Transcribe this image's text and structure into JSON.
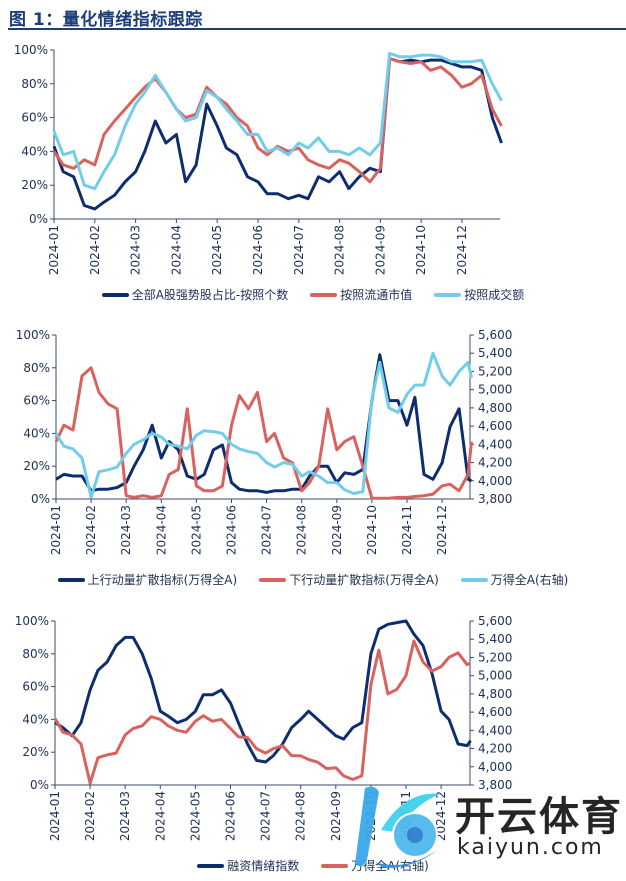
{
  "figure_title": "图 1：量化情绪指标跟踪",
  "colors": {
    "navy": "#0e2d6f",
    "red": "#d9625e",
    "cyan": "#72cdea",
    "title": "#1c3f7a"
  },
  "watermark": {
    "cn": "开云体育",
    "en": "kaiyun.com"
  },
  "chart_data": [
    {
      "type": "line",
      "title": "",
      "y_ticks": [
        "0%",
        "20%",
        "40%",
        "60%",
        "80%",
        "100%"
      ],
      "ylim": [
        0,
        100
      ],
      "x_ticks": [
        "2024-01",
        "2024-02",
        "2024-03",
        "2024-04",
        "2024-05",
        "2024-06",
        "2024-07",
        "2024-08",
        "2024-09",
        "2024-10",
        "2024-12"
      ],
      "grid": false,
      "legend": "bottom",
      "x": [
        "2024-01-01",
        "2024-01-08",
        "2024-01-16",
        "2024-01-24",
        "2024-02-01",
        "2024-02-08",
        "2024-02-16",
        "2024-02-24",
        "2024-03-01",
        "2024-03-08",
        "2024-03-16",
        "2024-03-24",
        "2024-04-01",
        "2024-04-08",
        "2024-04-16",
        "2024-04-24",
        "2024-05-01",
        "2024-05-08",
        "2024-05-16",
        "2024-05-24",
        "2024-06-01",
        "2024-06-08",
        "2024-06-16",
        "2024-06-24",
        "2024-07-01",
        "2024-07-08",
        "2024-07-16",
        "2024-07-24",
        "2024-08-01",
        "2024-08-08",
        "2024-08-16",
        "2024-08-24",
        "2024-09-01",
        "2024-09-08",
        "2024-09-16",
        "2024-09-24",
        "2024-10-01",
        "2024-10-08",
        "2024-10-16",
        "2024-10-24",
        "2024-12-01",
        "2024-12-08",
        "2024-12-16",
        "2024-12-24",
        "2024-12-31"
      ],
      "series": [
        {
          "name": "全部A股强势股占比-按照个数",
          "color": "#0e2d6f",
          "axis": "left",
          "values": [
            43,
            28,
            25,
            8,
            6,
            10,
            14,
            22,
            28,
            40,
            58,
            45,
            50,
            22,
            32,
            68,
            55,
            42,
            38,
            25,
            22,
            15,
            15,
            12,
            14,
            12,
            25,
            22,
            28,
            18,
            25,
            30,
            28,
            95,
            93,
            94,
            93,
            94,
            94,
            92,
            90,
            90,
            88,
            60,
            45
          ]
        },
        {
          "name": "按照流通市值",
          "color": "#d9625e",
          "axis": "left",
          "values": [
            40,
            32,
            30,
            35,
            32,
            50,
            58,
            65,
            72,
            78,
            83,
            75,
            65,
            60,
            62,
            78,
            72,
            68,
            60,
            55,
            42,
            38,
            43,
            40,
            42,
            35,
            32,
            30,
            35,
            33,
            28,
            22,
            30,
            95,
            93,
            92,
            93,
            88,
            90,
            85,
            78,
            80,
            85,
            65,
            55
          ]
        },
        {
          "name": "按照成交额",
          "color": "#72cdea",
          "axis": "left",
          "values": [
            52,
            38,
            40,
            20,
            18,
            28,
            38,
            55,
            68,
            75,
            85,
            75,
            65,
            58,
            60,
            76,
            72,
            65,
            58,
            50,
            50,
            40,
            42,
            38,
            45,
            42,
            48,
            40,
            40,
            38,
            42,
            38,
            45,
            98,
            96,
            96,
            97,
            97,
            96,
            93,
            93,
            93,
            94,
            80,
            70
          ]
        }
      ]
    },
    {
      "type": "line",
      "title": "",
      "y_ticks": [
        "0%",
        "20%",
        "40%",
        "60%",
        "80%",
        "100%"
      ],
      "ylim": [
        0,
        100
      ],
      "y2_ticks": [
        "3,800",
        "4,000",
        "4,200",
        "4,400",
        "4,600",
        "4,800",
        "5,000",
        "5,200",
        "5,400",
        "5,600"
      ],
      "y2lim": [
        3800,
        5600
      ],
      "x_ticks": [
        "2024-01",
        "2024-02",
        "2024-03",
        "2024-04",
        "2024-05",
        "2024-06",
        "2024-07",
        "2024-08",
        "2024-09",
        "2024-10",
        "2024-11",
        "2024-12"
      ],
      "grid": false,
      "legend": "bottom",
      "x": [
        "2024-01-01",
        "2024-01-08",
        "2024-01-16",
        "2024-01-24",
        "2024-02-01",
        "2024-02-08",
        "2024-02-16",
        "2024-02-24",
        "2024-03-01",
        "2024-03-08",
        "2024-03-16",
        "2024-03-24",
        "2024-04-01",
        "2024-04-08",
        "2024-04-16",
        "2024-04-24",
        "2024-05-01",
        "2024-05-08",
        "2024-05-16",
        "2024-05-24",
        "2024-06-01",
        "2024-06-08",
        "2024-06-16",
        "2024-06-24",
        "2024-07-01",
        "2024-07-08",
        "2024-07-16",
        "2024-07-24",
        "2024-08-01",
        "2024-08-08",
        "2024-08-16",
        "2024-08-24",
        "2024-09-01",
        "2024-09-08",
        "2024-09-16",
        "2024-09-24",
        "2024-10-01",
        "2024-10-08",
        "2024-10-16",
        "2024-10-24",
        "2024-11-01",
        "2024-11-08",
        "2024-11-16",
        "2024-11-24",
        "2024-12-01",
        "2024-12-08",
        "2024-12-16",
        "2024-12-24",
        "2024-12-27"
      ],
      "series": [
        {
          "name": "上行动量扩散指标(万得全A)",
          "color": "#0e2d6f",
          "axis": "left",
          "values": [
            12,
            15,
            14,
            14,
            5,
            6,
            6,
            7,
            10,
            20,
            30,
            45,
            25,
            35,
            30,
            14,
            12,
            15,
            30,
            33,
            10,
            6,
            5,
            5,
            4,
            5,
            5,
            6,
            6,
            14,
            20,
            20,
            10,
            16,
            15,
            18,
            60,
            88,
            60,
            60,
            45,
            62,
            15,
            12,
            22,
            44,
            55,
            12,
            11
          ]
        },
        {
          "name": "下行动量扩散指标(万得全A)",
          "color": "#d9625e",
          "axis": "left",
          "values": [
            35,
            45,
            42,
            75,
            80,
            65,
            58,
            55,
            2,
            1,
            2,
            1,
            2,
            15,
            18,
            55,
            8,
            5,
            5,
            8,
            45,
            63,
            55,
            65,
            35,
            40,
            25,
            22,
            5,
            10,
            20,
            55,
            30,
            35,
            38,
            20,
            0.5,
            0.5,
            0.5,
            1,
            1,
            1.5,
            2,
            3,
            8,
            9,
            5,
            15,
            35
          ]
        },
        {
          "name": "万得全A(右轴)",
          "color": "#72cdea",
          "axis": "right",
          "values": [
            4520,
            4380,
            4350,
            4250,
            3820,
            4100,
            4120,
            4150,
            4300,
            4400,
            4450,
            4520,
            4480,
            4400,
            4380,
            4350,
            4500,
            4550,
            4540,
            4520,
            4400,
            4350,
            4320,
            4300,
            4200,
            4150,
            4200,
            4180,
            4050,
            4100,
            4050,
            3980,
            3980,
            3900,
            3860,
            3880,
            4900,
            5300,
            4800,
            4750,
            4950,
            5050,
            5050,
            5400,
            5150,
            5050,
            5200,
            5300,
            5130
          ]
        }
      ]
    },
    {
      "type": "line",
      "title": "",
      "y_ticks": [
        "0%",
        "20%",
        "40%",
        "60%",
        "80%",
        "100%"
      ],
      "ylim": [
        0,
        100
      ],
      "y2_ticks": [
        "3,800",
        "4,000",
        "4,200",
        "4,400",
        "4,600",
        "4,800",
        "5,000",
        "5,200",
        "5,400",
        "5,600"
      ],
      "y2lim": [
        3800,
        5600
      ],
      "x_ticks": [
        "2024-01",
        "2024-02",
        "2024-03",
        "2024-04",
        "2024-05",
        "2024-06",
        "2024-07",
        "2024-08",
        "2024-09",
        "2024-10",
        "2024-11",
        "2024-12"
      ],
      "grid": false,
      "legend": "bottom",
      "x": [
        "2024-01-01",
        "2024-01-08",
        "2024-01-16",
        "2024-01-24",
        "2024-02-01",
        "2024-02-08",
        "2024-02-16",
        "2024-02-24",
        "2024-03-01",
        "2024-03-08",
        "2024-03-16",
        "2024-03-24",
        "2024-04-01",
        "2024-04-08",
        "2024-04-16",
        "2024-04-24",
        "2024-05-01",
        "2024-05-08",
        "2024-05-16",
        "2024-05-24",
        "2024-06-01",
        "2024-06-08",
        "2024-06-16",
        "2024-06-24",
        "2024-07-01",
        "2024-07-08",
        "2024-07-16",
        "2024-07-24",
        "2024-08-01",
        "2024-08-08",
        "2024-08-16",
        "2024-08-24",
        "2024-09-01",
        "2024-09-08",
        "2024-09-16",
        "2024-09-24",
        "2024-10-01",
        "2024-10-08",
        "2024-10-16",
        "2024-10-24",
        "2024-11-01",
        "2024-11-08",
        "2024-11-16",
        "2024-11-24",
        "2024-12-01",
        "2024-12-08",
        "2024-12-16",
        "2024-12-24",
        "2024-12-27"
      ],
      "series": [
        {
          "name": "融资情绪指数",
          "color": "#0e2d6f",
          "axis": "left",
          "values": [
            38,
            35,
            30,
            38,
            58,
            70,
            75,
            85,
            90,
            90,
            80,
            65,
            45,
            42,
            38,
            40,
            45,
            55,
            55,
            58,
            50,
            38,
            25,
            15,
            14,
            18,
            25,
            35,
            40,
            45,
            40,
            35,
            30,
            28,
            35,
            38,
            80,
            95,
            98,
            99,
            100,
            92,
            85,
            68,
            45,
            40,
            25,
            24,
            27
          ]
        },
        {
          "name": "万得全A(右轴)",
          "color": "#d9625e",
          "axis": "right",
          "values": [
            4530,
            4380,
            4350,
            4250,
            3820,
            4100,
            4130,
            4150,
            4350,
            4420,
            4450,
            4550,
            4520,
            4450,
            4400,
            4380,
            4500,
            4560,
            4500,
            4520,
            4420,
            4330,
            4320,
            4200,
            4150,
            4200,
            4230,
            4120,
            4120,
            4080,
            4050,
            3980,
            3990,
            3900,
            3860,
            3900,
            4900,
            5280,
            4800,
            4850,
            5000,
            5380,
            5150,
            5050,
            5100,
            5200,
            5250,
            5120,
            5140
          ]
        }
      ]
    }
  ]
}
